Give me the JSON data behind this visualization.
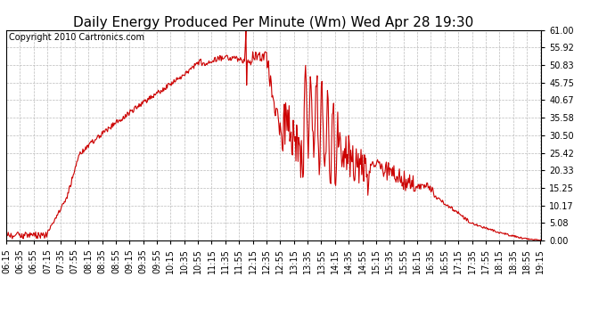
{
  "title": "Daily Energy Produced Per Minute (Wm) Wed Apr 28 19:30",
  "copyright": "Copyright 2010 Cartronics.com",
  "line_color": "#cc0000",
  "bg_color": "#ffffff",
  "plot_bg_color": "#ffffff",
  "grid_color": "#bbbbbb",
  "ylim": [
    0.0,
    61.0
  ],
  "yticks": [
    0.0,
    5.08,
    10.17,
    15.25,
    20.33,
    25.42,
    30.5,
    35.58,
    40.67,
    45.75,
    50.83,
    55.92,
    61.0
  ],
  "title_fontsize": 11,
  "copyright_fontsize": 7,
  "tick_fontsize": 7,
  "line_width": 0.8,
  "figsize": [
    6.9,
    3.75
  ],
  "dpi": 100
}
